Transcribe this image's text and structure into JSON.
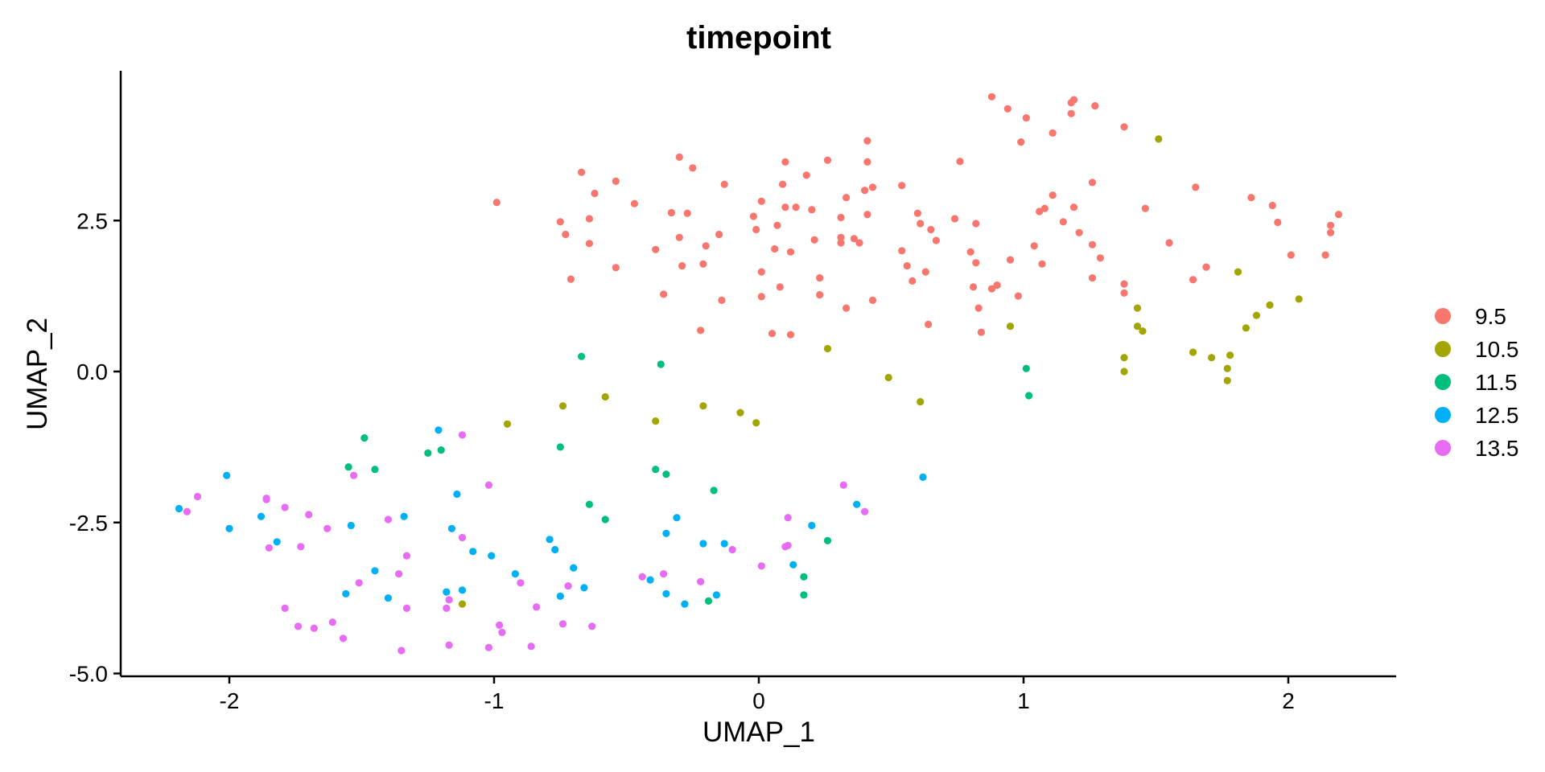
{
  "chart_data": {
    "type": "scatter",
    "title": "timepoint",
    "xlabel": "UMAP_1",
    "ylabel": "UMAP_2",
    "xlim": [
      -2.4,
      2.4
    ],
    "ylim": [
      -5.1,
      5.0
    ],
    "x_ticks": [
      "-2",
      "-1",
      "0",
      "1",
      "2"
    ],
    "y_ticks": [
      "-5.0",
      "-2.5",
      "0.0",
      "2.5"
    ],
    "grid": false,
    "legend_position": "right",
    "legend_title": "",
    "series": [
      {
        "name": "9.5",
        "color": "#F8766D",
        "points": [
          [
            -0.99,
            2.8
          ],
          [
            -0.75,
            2.48
          ],
          [
            -0.73,
            2.27
          ],
          [
            -0.71,
            1.53
          ],
          [
            -0.67,
            3.3
          ],
          [
            -0.64,
            2.12
          ],
          [
            -0.64,
            2.53
          ],
          [
            -0.62,
            2.95
          ],
          [
            -0.54,
            3.15
          ],
          [
            -0.54,
            1.72
          ],
          [
            -0.47,
            2.78
          ],
          [
            -0.39,
            2.02
          ],
          [
            -0.36,
            1.28
          ],
          [
            -0.33,
            2.63
          ],
          [
            -0.3,
            3.55
          ],
          [
            -0.3,
            2.22
          ],
          [
            -0.29,
            1.75
          ],
          [
            -0.27,
            2.62
          ],
          [
            -0.25,
            3.37
          ],
          [
            -0.22,
            0.68
          ],
          [
            -0.21,
            1.78
          ],
          [
            -0.2,
            2.08
          ],
          [
            -0.15,
            2.27
          ],
          [
            -0.14,
            1.18
          ],
          [
            -0.13,
            3.1
          ],
          [
            -0.02,
            2.57
          ],
          [
            -0.01,
            2.35
          ],
          [
            0.01,
            1.24
          ],
          [
            0.01,
            1.65
          ],
          [
            0.01,
            2.82
          ],
          [
            0.05,
            0.63
          ],
          [
            0.06,
            2.03
          ],
          [
            0.07,
            2.42
          ],
          [
            0.08,
            1.4
          ],
          [
            0.09,
            3.1
          ],
          [
            0.1,
            3.47
          ],
          [
            0.1,
            2.72
          ],
          [
            0.12,
            0.61
          ],
          [
            0.12,
            1.98
          ],
          [
            0.14,
            2.72
          ],
          [
            0.18,
            3.25
          ],
          [
            0.2,
            2.68
          ],
          [
            0.21,
            2.18
          ],
          [
            0.23,
            1.27
          ],
          [
            0.23,
            1.55
          ],
          [
            0.26,
            3.5
          ],
          [
            0.31,
            2.22
          ],
          [
            0.31,
            2.13
          ],
          [
            0.31,
            2.55
          ],
          [
            0.33,
            2.88
          ],
          [
            0.33,
            1.05
          ],
          [
            0.36,
            2.2
          ],
          [
            0.38,
            2.13
          ],
          [
            0.4,
            3.0
          ],
          [
            0.41,
            3.47
          ],
          [
            0.41,
            2.6
          ],
          [
            0.41,
            3.82
          ],
          [
            0.43,
            3.05
          ],
          [
            0.43,
            1.18
          ],
          [
            0.54,
            3.08
          ],
          [
            0.54,
            2.0
          ],
          [
            0.56,
            1.75
          ],
          [
            0.58,
            1.5
          ],
          [
            0.6,
            2.62
          ],
          [
            0.61,
            2.45
          ],
          [
            0.63,
            1.65
          ],
          [
            0.64,
            0.78
          ],
          [
            0.65,
            2.35
          ],
          [
            0.67,
            2.17
          ],
          [
            0.74,
            2.53
          ],
          [
            0.76,
            3.48
          ],
          [
            0.8,
            1.98
          ],
          [
            0.81,
            1.4
          ],
          [
            0.82,
            2.45
          ],
          [
            0.82,
            1.8
          ],
          [
            0.83,
            1.05
          ],
          [
            0.84,
            0.65
          ],
          [
            0.88,
            1.37
          ],
          [
            0.88,
            4.55
          ],
          [
            0.9,
            1.43
          ],
          [
            0.94,
            4.35
          ],
          [
            0.95,
            1.85
          ],
          [
            0.98,
            1.25
          ],
          [
            0.99,
            3.8
          ],
          [
            1.01,
            4.2
          ],
          [
            1.04,
            2.08
          ],
          [
            1.06,
            2.65
          ],
          [
            1.07,
            1.78
          ],
          [
            1.08,
            2.7
          ],
          [
            1.11,
            2.92
          ],
          [
            1.11,
            3.95
          ],
          [
            1.15,
            2.48
          ],
          [
            1.18,
            4.27
          ],
          [
            1.18,
            4.45
          ],
          [
            1.19,
            2.72
          ],
          [
            1.19,
            4.5
          ],
          [
            1.21,
            2.3
          ],
          [
            1.26,
            3.13
          ],
          [
            1.26,
            2.1
          ],
          [
            1.26,
            1.55
          ],
          [
            1.27,
            4.4
          ],
          [
            1.29,
            1.88
          ],
          [
            1.38,
            1.45
          ],
          [
            1.38,
            1.3
          ],
          [
            1.38,
            4.05
          ],
          [
            1.46,
            2.7
          ],
          [
            1.55,
            2.13
          ],
          [
            1.64,
            1.52
          ],
          [
            1.65,
            3.05
          ],
          [
            1.69,
            1.73
          ],
          [
            1.86,
            2.88
          ],
          [
            1.94,
            2.75
          ],
          [
            1.96,
            2.47
          ],
          [
            2.01,
            1.93
          ],
          [
            2.14,
            1.93
          ],
          [
            2.16,
            2.42
          ],
          [
            2.16,
            2.3
          ],
          [
            2.19,
            2.6
          ]
        ]
      },
      {
        "name": "10.5",
        "color": "#A3A500",
        "points": [
          [
            -1.12,
            -3.85
          ],
          [
            -0.95,
            -0.87
          ],
          [
            -0.74,
            -0.57
          ],
          [
            -0.58,
            -0.42
          ],
          [
            -0.39,
            -0.82
          ],
          [
            -0.21,
            -0.57
          ],
          [
            -0.07,
            -0.68
          ],
          [
            -0.01,
            -0.85
          ],
          [
            0.26,
            0.38
          ],
          [
            0.49,
            -0.1
          ],
          [
            0.61,
            -0.5
          ],
          [
            0.95,
            0.75
          ],
          [
            1.38,
            0.23
          ],
          [
            1.38,
            0.0
          ],
          [
            1.43,
            1.05
          ],
          [
            1.43,
            0.75
          ],
          [
            1.45,
            0.67
          ],
          [
            1.51,
            3.85
          ],
          [
            1.64,
            0.32
          ],
          [
            1.71,
            0.23
          ],
          [
            1.77,
            0.05
          ],
          [
            1.77,
            -0.15
          ],
          [
            1.78,
            0.27
          ],
          [
            1.81,
            1.65
          ],
          [
            1.84,
            0.72
          ],
          [
            1.88,
            0.93
          ],
          [
            1.93,
            1.1
          ],
          [
            2.04,
            1.2
          ]
        ]
      },
      {
        "name": "11.5",
        "color": "#00BF7D",
        "points": [
          [
            -1.55,
            -1.58
          ],
          [
            -1.49,
            -1.1
          ],
          [
            -1.45,
            -1.62
          ],
          [
            -1.25,
            -1.35
          ],
          [
            -1.2,
            -1.3
          ],
          [
            -0.75,
            -1.25
          ],
          [
            -0.67,
            0.25
          ],
          [
            -0.64,
            -2.2
          ],
          [
            -0.58,
            -2.45
          ],
          [
            -0.39,
            -1.62
          ],
          [
            -0.37,
            0.12
          ],
          [
            -0.35,
            -1.7
          ],
          [
            -0.19,
            -3.8
          ],
          [
            -0.17,
            -1.97
          ],
          [
            0.17,
            -3.4
          ],
          [
            0.17,
            -3.7
          ],
          [
            0.26,
            -2.8
          ],
          [
            1.01,
            0.05
          ],
          [
            1.02,
            -0.4
          ]
        ]
      },
      {
        "name": "12.5",
        "color": "#00B0F6",
        "points": [
          [
            -2.19,
            -2.27
          ],
          [
            -2.0,
            -2.6
          ],
          [
            -2.01,
            -1.72
          ],
          [
            -1.88,
            -2.4
          ],
          [
            -1.82,
            -2.82
          ],
          [
            -1.56,
            -3.68
          ],
          [
            -1.54,
            -2.55
          ],
          [
            -1.45,
            -3.3
          ],
          [
            -1.4,
            -3.75
          ],
          [
            -1.34,
            -2.4
          ],
          [
            -1.21,
            -0.97
          ],
          [
            -1.18,
            -3.65
          ],
          [
            -1.16,
            -2.6
          ],
          [
            -1.14,
            -2.03
          ],
          [
            -1.12,
            -3.62
          ],
          [
            -1.08,
            -2.98
          ],
          [
            -1.01,
            -3.05
          ],
          [
            -0.92,
            -3.35
          ],
          [
            -0.79,
            -2.78
          ],
          [
            -0.77,
            -2.95
          ],
          [
            -0.75,
            -3.72
          ],
          [
            -0.7,
            -3.25
          ],
          [
            -0.66,
            -3.58
          ],
          [
            -0.41,
            -3.45
          ],
          [
            -0.35,
            -3.68
          ],
          [
            -0.35,
            -2.68
          ],
          [
            -0.31,
            -2.42
          ],
          [
            -0.28,
            -3.85
          ],
          [
            -0.21,
            -2.85
          ],
          [
            -0.16,
            -3.7
          ],
          [
            -0.13,
            -2.85
          ],
          [
            0.13,
            -3.2
          ],
          [
            0.2,
            -2.55
          ],
          [
            0.37,
            -2.2
          ],
          [
            0.62,
            -1.75
          ]
        ]
      },
      {
        "name": "13.5",
        "color": "#E76BF3",
        "points": [
          [
            -2.16,
            -2.32
          ],
          [
            -2.12,
            -2.07
          ],
          [
            -1.86,
            -2.1
          ],
          [
            -1.86,
            -2.12
          ],
          [
            -1.85,
            -2.92
          ],
          [
            -1.79,
            -2.25
          ],
          [
            -1.79,
            -3.92
          ],
          [
            -1.74,
            -4.22
          ],
          [
            -1.73,
            -2.9
          ],
          [
            -1.7,
            -2.37
          ],
          [
            -1.68,
            -4.25
          ],
          [
            -1.63,
            -2.6
          ],
          [
            -1.61,
            -4.15
          ],
          [
            -1.57,
            -4.42
          ],
          [
            -1.53,
            -1.72
          ],
          [
            -1.51,
            -3.5
          ],
          [
            -1.4,
            -2.45
          ],
          [
            -1.36,
            -3.35
          ],
          [
            -1.35,
            -4.62
          ],
          [
            -1.33,
            -3.05
          ],
          [
            -1.33,
            -3.92
          ],
          [
            -1.18,
            -3.92
          ],
          [
            -1.17,
            -3.78
          ],
          [
            -1.17,
            -4.53
          ],
          [
            -1.12,
            -2.75
          ],
          [
            -1.12,
            -1.05
          ],
          [
            -1.02,
            -4.57
          ],
          [
            -1.02,
            -1.88
          ],
          [
            -0.98,
            -4.2
          ],
          [
            -0.97,
            -4.32
          ],
          [
            -0.9,
            -3.5
          ],
          [
            -0.86,
            -4.55
          ],
          [
            -0.84,
            -3.9
          ],
          [
            -0.74,
            -4.18
          ],
          [
            -0.72,
            -3.55
          ],
          [
            -0.63,
            -4.22
          ],
          [
            -0.44,
            -3.4
          ],
          [
            -0.36,
            -3.35
          ],
          [
            -0.22,
            -3.48
          ],
          [
            -0.1,
            -2.95
          ],
          [
            0.01,
            -3.22
          ],
          [
            0.1,
            -2.9
          ],
          [
            0.11,
            -2.42
          ],
          [
            0.11,
            -2.88
          ],
          [
            0.32,
            -1.88
          ],
          [
            0.4,
            -2.32
          ]
        ]
      }
    ]
  }
}
